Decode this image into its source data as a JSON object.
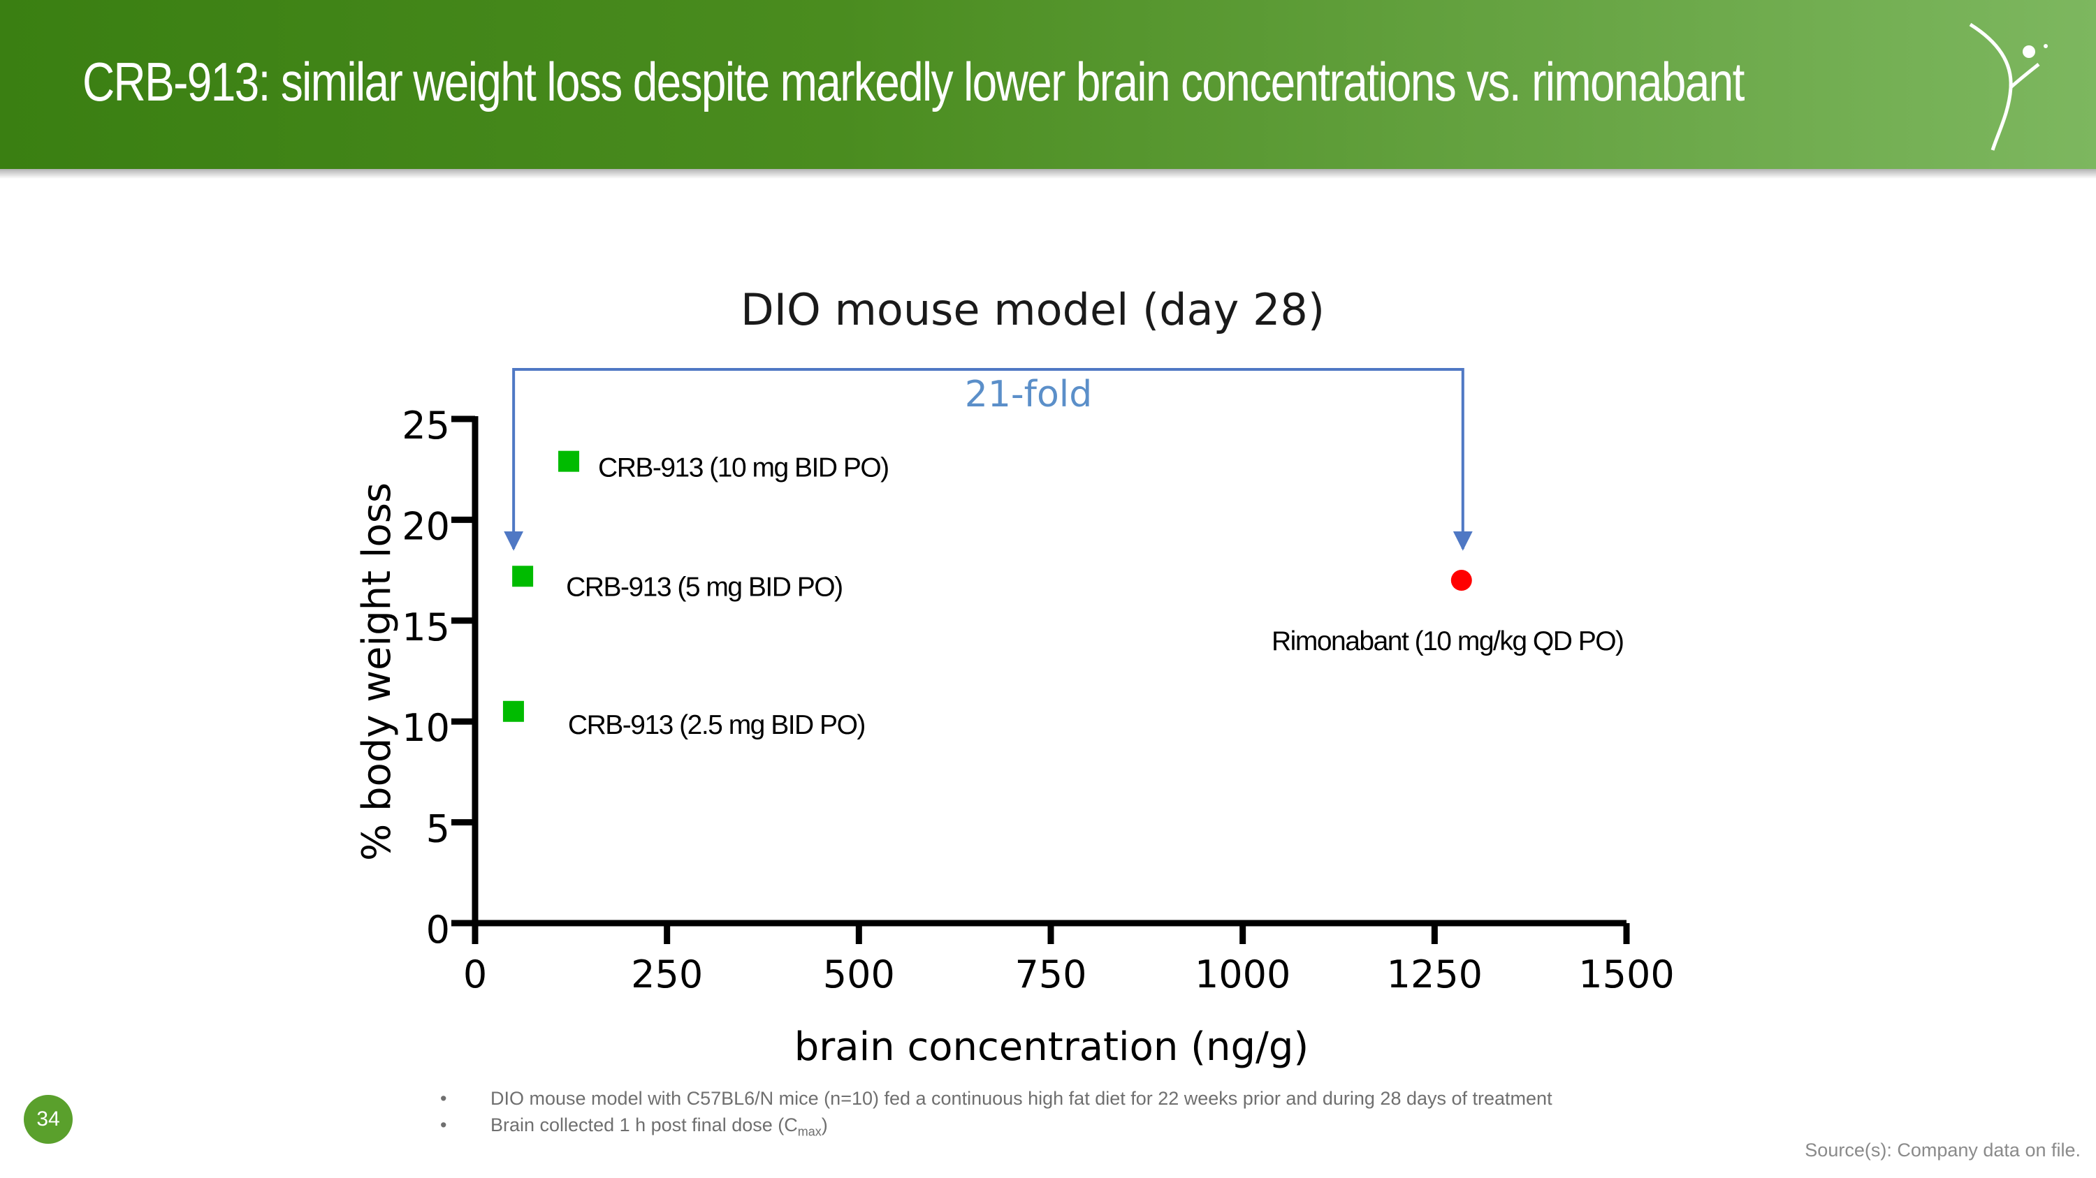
{
  "slide": {
    "title": "CRB-913: similar weight loss despite markedly lower brain concentrations vs. rimonabant",
    "page_number": "34",
    "notes": [
      "DIO mouse model with C57BL6/N mice (n=10) fed a continuous high fat diet for 22 weeks prior and during 28 days of treatment",
      "Brain collected 1 h post final dose (C",
      "max",
      ")"
    ],
    "source": "Source(s): Company data on file.",
    "colors": {
      "header_dark": "#3a7f12",
      "header_light": "#7db75f",
      "badge": "#5aa02c"
    }
  },
  "chart_data": {
    "type": "scatter",
    "title": "DIO mouse model (day 28)",
    "xlabel": "brain concentration (ng/g)",
    "ylabel": "% body weight loss",
    "xlim": [
      0,
      1500
    ],
    "ylim": [
      0,
      25
    ],
    "x_ticks": [
      "0",
      "250",
      "500",
      "750",
      "1000",
      "1250",
      "1500"
    ],
    "y_ticks": [
      "0",
      "5",
      "10",
      "15",
      "20",
      "25"
    ],
    "grid": false,
    "points": [
      {
        "label": "CRB-913 (10 mg BID PO)",
        "x": 122,
        "y": 22.9,
        "marker": "square",
        "color": "#00bb00"
      },
      {
        "label": "CRB-913 (5 mg BID PO)",
        "x": 62,
        "y": 17.2,
        "marker": "square",
        "color": "#00bb00"
      },
      {
        "label": "CRB-913 (2.5 mg BID PO)",
        "x": 50,
        "y": 10.5,
        "marker": "square",
        "color": "#00bb00"
      },
      {
        "label": "Rimonabant (10 mg/kg QD PO)",
        "x": 1285,
        "y": 17.0,
        "marker": "circle",
        "color": "#ff0000"
      }
    ],
    "annotation": {
      "text": "21-fold",
      "from_x": 52,
      "to_x": 1285,
      "color": "#4f78c4",
      "text_color": "#5b8fc9"
    }
  }
}
